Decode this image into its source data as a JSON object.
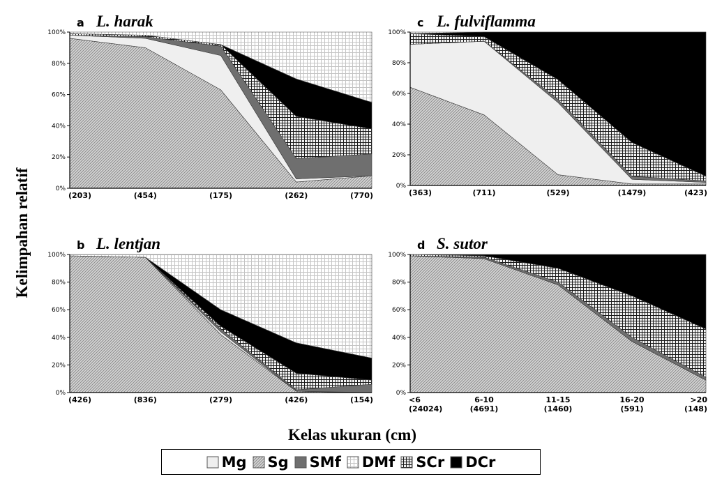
{
  "figure": {
    "ylabel": "Kelimpahan relatif",
    "xlabel": "Kelas ukuran (cm)",
    "y_ticks": [
      "0%",
      "20%",
      "40%",
      "60%",
      "80%",
      "100%"
    ]
  },
  "legend": [
    {
      "key": "Mg",
      "label": "Mg"
    },
    {
      "key": "Sg",
      "label": "Sg"
    },
    {
      "key": "SMf",
      "label": "SMf"
    },
    {
      "key": "DMf",
      "label": "DMf"
    },
    {
      "key": "SCr",
      "label": "SCr"
    },
    {
      "key": "DCr",
      "label": "DCr"
    }
  ],
  "chart_data": [
    {
      "type": "area",
      "stacked_percent": true,
      "panel_letter": "a",
      "title": "L. harak",
      "categories": [
        "(203)",
        "(454)",
        "(175)",
        "(262)",
        "(770)"
      ],
      "series": [
        {
          "name": "Sg",
          "values": [
            96,
            90,
            63,
            4,
            8
          ]
        },
        {
          "name": "Mg",
          "values": [
            2,
            6,
            22,
            2,
            0
          ]
        },
        {
          "name": "SMf",
          "values": [
            0,
            1,
            6,
            13,
            14
          ]
        },
        {
          "name": "SCr",
          "values": [
            1,
            1,
            1,
            27,
            16
          ]
        },
        {
          "name": "DCr",
          "values": [
            0,
            0,
            0,
            24,
            17
          ]
        },
        {
          "name": "DMf",
          "values": [
            1,
            2,
            8,
            30,
            45
          ]
        }
      ],
      "ylim": [
        0,
        100
      ]
    },
    {
      "type": "area",
      "stacked_percent": true,
      "panel_letter": "b",
      "title": "L. lentjan",
      "categories": [
        "(426)",
        "(836)",
        "(279)",
        "(426)",
        "(154)"
      ],
      "series": [
        {
          "name": "Sg",
          "values": [
            99,
            98,
            42,
            1,
            0
          ]
        },
        {
          "name": "Mg",
          "values": [
            0,
            0,
            2,
            0,
            0
          ]
        },
        {
          "name": "SMf",
          "values": [
            0,
            0,
            2,
            1,
            6
          ]
        },
        {
          "name": "SCr",
          "values": [
            0,
            0,
            2,
            12,
            3
          ]
        },
        {
          "name": "DCr",
          "values": [
            0,
            0,
            12,
            22,
            16
          ]
        },
        {
          "name": "DMf",
          "values": [
            1,
            2,
            40,
            64,
            75
          ]
        }
      ],
      "ylim": [
        0,
        100
      ]
    },
    {
      "type": "area",
      "stacked_percent": true,
      "panel_letter": "c",
      "title": "L. fulviflamma",
      "categories": [
        "(363)",
        "(711)",
        "(529)",
        "(1479)",
        "(423)"
      ],
      "series": [
        {
          "name": "Sg",
          "values": [
            64,
            46,
            7,
            1,
            1
          ]
        },
        {
          "name": "Mg",
          "values": [
            28,
            48,
            47,
            3,
            1
          ]
        },
        {
          "name": "SMf",
          "values": [
            0,
            0,
            2,
            2,
            1
          ]
        },
        {
          "name": "SCr",
          "values": [
            7,
            3,
            13,
            22,
            3
          ]
        },
        {
          "name": "DCr",
          "values": [
            0,
            3,
            31,
            72,
            94
          ]
        },
        {
          "name": "DMf",
          "values": [
            1,
            0,
            0,
            0,
            0
          ]
        }
      ],
      "ylim": [
        0,
        100
      ]
    },
    {
      "type": "area",
      "stacked_percent": true,
      "panel_letter": "d",
      "title": "S. sutor",
      "categories": [
        "<6",
        "6-10",
        "11-15",
        "16-20",
        ">20"
      ],
      "sample_sizes": [
        "(24024)",
        "(4691)",
        "(1460)",
        "(591)",
        "(148)"
      ],
      "series": [
        {
          "name": "Sg",
          "values": [
            99,
            97,
            78,
            37,
            9
          ]
        },
        {
          "name": "Mg",
          "values": [
            0,
            0,
            0,
            0,
            0
          ]
        },
        {
          "name": "SMf",
          "values": [
            0,
            1,
            2,
            3,
            2
          ]
        },
        {
          "name": "SCr",
          "values": [
            1,
            1,
            10,
            30,
            35
          ]
        },
        {
          "name": "DCr",
          "values": [
            0,
            1,
            10,
            30,
            54
          ]
        },
        {
          "name": "DMf",
          "values": [
            0,
            0,
            0,
            0,
            0
          ]
        }
      ],
      "ylim": [
        0,
        100
      ]
    }
  ]
}
